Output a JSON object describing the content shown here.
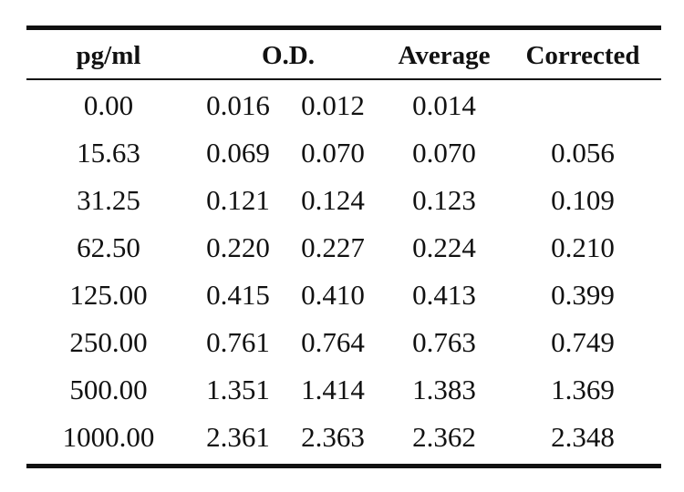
{
  "table": {
    "headers": {
      "pg": "pg/ml",
      "od": "O.D.",
      "average": "Average",
      "corrected": "Corrected"
    },
    "rows": [
      {
        "pg": "0.00",
        "od1": "0.016",
        "od2": "0.012",
        "average": "0.014",
        "corrected": ""
      },
      {
        "pg": "15.63",
        "od1": "0.069",
        "od2": "0.070",
        "average": "0.070",
        "corrected": "0.056"
      },
      {
        "pg": "31.25",
        "od1": "0.121",
        "od2": "0.124",
        "average": "0.123",
        "corrected": "0.109"
      },
      {
        "pg": "62.50",
        "od1": "0.220",
        "od2": "0.227",
        "average": "0.224",
        "corrected": "0.210"
      },
      {
        "pg": "125.00",
        "od1": "0.415",
        "od2": "0.410",
        "average": "0.413",
        "corrected": "0.399"
      },
      {
        "pg": "250.00",
        "od1": "0.761",
        "od2": "0.764",
        "average": "0.763",
        "corrected": "0.749"
      },
      {
        "pg": "500.00",
        "od1": "1.351",
        "od2": "1.414",
        "average": "1.383",
        "corrected": "1.369"
      },
      {
        "pg": "1000.00",
        "od1": "2.361",
        "od2": "2.363",
        "average": "2.362",
        "corrected": "2.348"
      }
    ]
  }
}
